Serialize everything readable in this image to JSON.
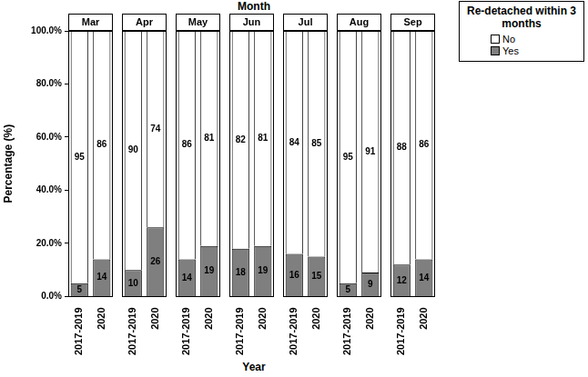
{
  "chart_data": {
    "type": "bar",
    "title": "Month",
    "x_label": "Year",
    "y_label": "Percentage (%)",
    "legend_title": "Re-detached within 3 months",
    "legend": "upper right",
    "stacked": true,
    "data_labels": true,
    "grid": false,
    "categories": [
      "2017-2019",
      "2020"
    ],
    "series": [
      {
        "name": "No",
        "color": "#ffffff"
      },
      {
        "name": "Yes",
        "color": "#7f7f7f"
      }
    ],
    "ylim": [
      0,
      100
    ],
    "yticks": [
      {
        "value": 0,
        "label": "0.0%"
      },
      {
        "value": 20,
        "label": "20.0%"
      },
      {
        "value": 40,
        "label": "40.0%"
      },
      {
        "value": 60,
        "label": "60.0%"
      },
      {
        "value": 80,
        "label": "80.0%"
      },
      {
        "value": 100,
        "label": "100.0%"
      }
    ],
    "facets": [
      {
        "title": "Mar",
        "values": {
          "No": [
            95,
            86
          ],
          "Yes": [
            5,
            14
          ]
        }
      },
      {
        "title": "Apr",
        "values": {
          "No": [
            90,
            74
          ],
          "Yes": [
            10,
            26
          ]
        }
      },
      {
        "title": "May",
        "values": {
          "No": [
            86,
            81
          ],
          "Yes": [
            14,
            19
          ]
        }
      },
      {
        "title": "Jun",
        "values": {
          "No": [
            82,
            81
          ],
          "Yes": [
            18,
            19
          ]
        }
      },
      {
        "title": "Jul",
        "values": {
          "No": [
            84,
            85
          ],
          "Yes": [
            16,
            15
          ]
        }
      },
      {
        "title": "Aug",
        "values": {
          "No": [
            95,
            91
          ],
          "Yes": [
            5,
            9
          ]
        }
      },
      {
        "title": "Sep",
        "values": {
          "No": [
            88,
            86
          ],
          "Yes": [
            12,
            14
          ]
        }
      }
    ]
  }
}
